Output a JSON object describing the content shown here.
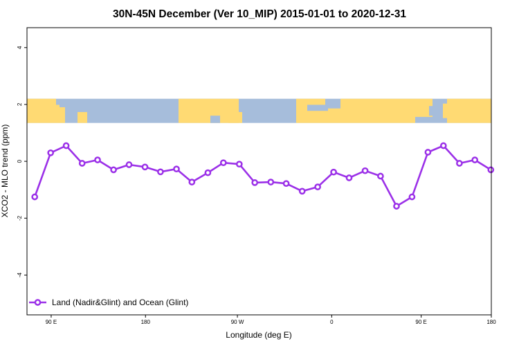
{
  "chart_data": {
    "type": "line",
    "title": "30N-45N December (Ver 10_MIP)   2015-01-01 to 2020-12-31",
    "xlabel": "Longitude (deg E)",
    "ylabel": "XCO2 - MLO trend (ppm)",
    "xlim": [
      85,
      181
    ],
    "ylim": [
      -5.4,
      4.7
    ],
    "x_ticks": [
      {
        "value": 90,
        "label": "90 E"
      },
      {
        "value": 109.5,
        "label": "180"
      },
      {
        "value": 128.5,
        "label": "90 W"
      },
      {
        "value": 148,
        "label": "0"
      },
      {
        "value": 166.5,
        "label": "90 E"
      },
      {
        "value": 181,
        "label": "180"
      }
    ],
    "y_ticks": [
      {
        "value": 4,
        "label": "4"
      },
      {
        "value": 2,
        "label": "2"
      },
      {
        "value": 0,
        "label": "0"
      },
      {
        "value": -2,
        "label": "-2"
      },
      {
        "value": -4,
        "label": "-4"
      }
    ],
    "map_strip": {
      "y_from": 1.35,
      "y_to": 2.2,
      "land_color": "#FFDA73",
      "ocean_color": "#A6BDDB"
    },
    "series": [
      {
        "name": "Land (Nadir&Glint) and Ocean (Glint)",
        "color": "#9B30E8",
        "x": [
          86.6,
          89.9,
          93.1,
          96.4,
          99.6,
          102.9,
          106.1,
          109.4,
          112.6,
          115.9,
          119.1,
          122.4,
          125.6,
          128.9,
          132.1,
          135.4,
          138.6,
          141.9,
          145.1,
          148.4,
          151.6,
          154.9,
          158.1,
          161.4,
          164.6,
          167.9,
          171.1,
          174.4,
          177.6,
          180.9
        ],
        "y": [
          -1.25,
          0.3,
          0.55,
          -0.07,
          0.05,
          -0.3,
          -0.12,
          -0.2,
          -0.37,
          -0.27,
          -0.73,
          -0.4,
          -0.05,
          -0.1,
          -0.75,
          -0.73,
          -0.78,
          -1.05,
          -0.9,
          -0.38,
          -0.58,
          -0.33,
          -0.52,
          -1.58,
          -1.25,
          0.32,
          0.55,
          -0.07,
          0.05,
          -0.3
        ]
      }
    ],
    "legend_position": "bottom-left",
    "grid": false
  }
}
